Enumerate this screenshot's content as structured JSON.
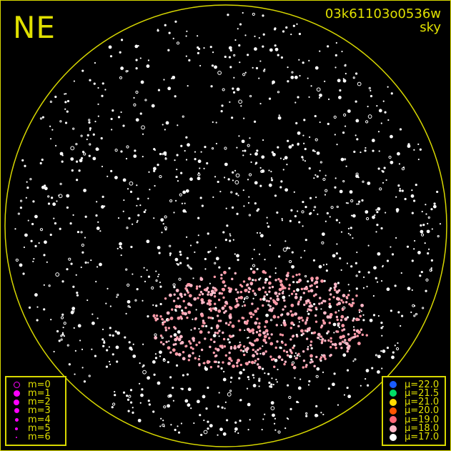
{
  "direction_label": "NE",
  "header": {
    "frame_id": "03k61103o0536w",
    "subtitle": "sky"
  },
  "colors": {
    "annotation": "#e0e000",
    "horizon_circle": "#d8d800",
    "magnitude_legend": "#ff00ff",
    "background": "#000000"
  },
  "magnitude_legend": [
    {
      "label": "m=0",
      "symbol": "hollow-circle"
    },
    {
      "label": "m=1",
      "symbol": "filled-circle"
    },
    {
      "label": "m=2",
      "symbol": "filled-circle"
    },
    {
      "label": "m=3",
      "symbol": "filled-circle"
    },
    {
      "label": "m=4",
      "symbol": "filled-circle"
    },
    {
      "label": "m=5",
      "symbol": "filled-circle"
    },
    {
      "label": "m=6",
      "symbol": "filled-circle"
    }
  ],
  "brightness_legend": [
    {
      "label": "μ=22.0",
      "color": "#1a5cff"
    },
    {
      "label": "μ=21.5",
      "color": "#00dd66"
    },
    {
      "label": "μ=21.0",
      "color": "#ffdd00"
    },
    {
      "label": "μ=20.0",
      "color": "#ff5500"
    },
    {
      "label": "μ=19.0",
      "color": "#ff6677"
    },
    {
      "label": "μ=18.0",
      "color": "#ffb8c8"
    },
    {
      "label": "μ=17.0",
      "color": "#ffffff"
    }
  ]
}
